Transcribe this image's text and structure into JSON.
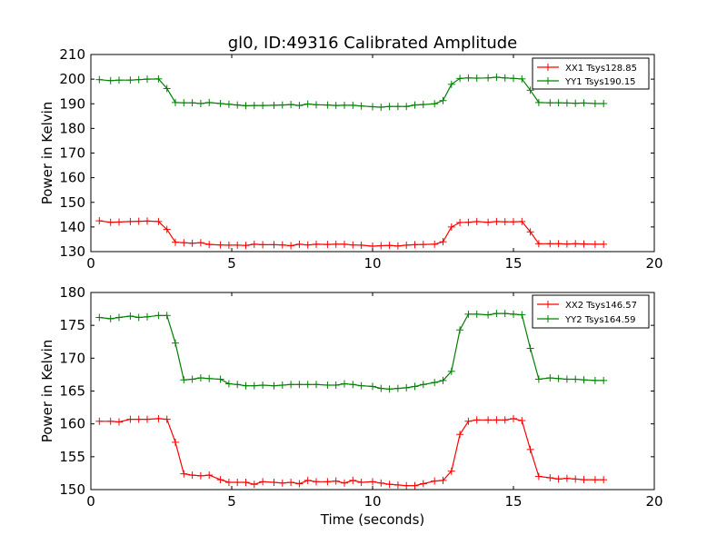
{
  "chart_data": [
    {
      "type": "line",
      "title": "gl0, ID:49316 Calibrated Amplitude",
      "xlabel": "",
      "ylabel": "Power in Kelvin",
      "xlim": [
        0,
        20
      ],
      "ylim": [
        130,
        210
      ],
      "xticks": [
        0,
        5,
        10,
        15,
        20
      ],
      "yticks": [
        130,
        140,
        150,
        160,
        170,
        180,
        190,
        200,
        210
      ],
      "grid": false,
      "legend": "top-right",
      "x": [
        0.3,
        0.7,
        1.0,
        1.4,
        1.7,
        2.0,
        2.4,
        2.7,
        3.0,
        3.3,
        3.6,
        3.9,
        4.2,
        4.6,
        4.9,
        5.2,
        5.5,
        5.8,
        6.1,
        6.5,
        6.8,
        7.1,
        7.4,
        7.7,
        8.0,
        8.4,
        8.7,
        9.0,
        9.3,
        9.6,
        10.0,
        10.3,
        10.6,
        10.9,
        11.2,
        11.5,
        11.8,
        12.2,
        12.5,
        12.8,
        13.1,
        13.4,
        13.7,
        14.1,
        14.4,
        14.7,
        15.0,
        15.3,
        15.6,
        15.9,
        16.3,
        16.6,
        16.9,
        17.2,
        17.5,
        17.9,
        18.2
      ],
      "series": [
        {
          "name": "XX1 Tsys128.85",
          "color": "#ff0000",
          "values": [
            142.5,
            141.9,
            142.0,
            142.2,
            142.3,
            142.4,
            142.2,
            139.0,
            133.8,
            133.6,
            133.4,
            133.6,
            132.9,
            132.7,
            132.6,
            132.6,
            132.5,
            133.0,
            132.8,
            132.8,
            132.7,
            132.4,
            133.0,
            132.7,
            133.0,
            132.9,
            133.0,
            133.0,
            132.7,
            132.6,
            132.2,
            132.4,
            132.5,
            132.3,
            132.6,
            132.8,
            132.9,
            133.0,
            134.0,
            140.0,
            141.8,
            141.9,
            142.2,
            141.9,
            142.2,
            142.1,
            142.1,
            142.2,
            138.0,
            133.2,
            133.2,
            133.2,
            133.1,
            133.2,
            133.1,
            133.0,
            133.0
          ]
        },
        {
          "name": "YY1 Tsys190.15",
          "color": "#008000",
          "values": [
            199.8,
            199.4,
            199.6,
            199.6,
            199.8,
            200.0,
            200.1,
            196.2,
            190.5,
            190.4,
            190.4,
            190.1,
            190.5,
            190.1,
            189.8,
            189.5,
            189.2,
            189.3,
            189.3,
            189.4,
            189.5,
            189.7,
            189.3,
            189.9,
            189.6,
            189.5,
            189.3,
            189.4,
            189.4,
            189.1,
            188.8,
            188.6,
            188.9,
            188.9,
            188.9,
            189.5,
            189.7,
            190.0,
            191.3,
            197.9,
            200.3,
            200.5,
            200.4,
            200.5,
            200.8,
            200.5,
            200.3,
            200.1,
            195.5,
            190.5,
            190.4,
            190.4,
            190.3,
            190.2,
            190.3,
            190.1,
            190.1
          ]
        }
      ]
    },
    {
      "type": "line",
      "title": "",
      "xlabel": "Time (seconds)",
      "ylabel": "Power in Kelvin",
      "xlim": [
        0,
        20
      ],
      "ylim": [
        150,
        180
      ],
      "xticks": [
        0,
        5,
        10,
        15,
        20
      ],
      "yticks": [
        150,
        155,
        160,
        165,
        170,
        175,
        180
      ],
      "grid": false,
      "legend": "top-right",
      "x": [
        0.3,
        0.7,
        1.0,
        1.4,
        1.7,
        2.0,
        2.4,
        2.7,
        3.0,
        3.3,
        3.6,
        3.9,
        4.2,
        4.6,
        4.9,
        5.2,
        5.5,
        5.8,
        6.1,
        6.5,
        6.8,
        7.1,
        7.4,
        7.7,
        8.0,
        8.4,
        8.7,
        9.0,
        9.3,
        9.6,
        10.0,
        10.3,
        10.6,
        10.9,
        11.2,
        11.5,
        11.8,
        12.2,
        12.5,
        12.8,
        13.1,
        13.4,
        13.7,
        14.1,
        14.4,
        14.7,
        15.0,
        15.3,
        15.6,
        15.9,
        16.3,
        16.6,
        16.9,
        17.2,
        17.5,
        17.9,
        18.2
      ],
      "series": [
        {
          "name": "XX2 Tsys146.57",
          "color": "#ff0000",
          "values": [
            160.4,
            160.4,
            160.3,
            160.7,
            160.7,
            160.7,
            160.8,
            160.7,
            157.2,
            152.4,
            152.2,
            152.1,
            152.2,
            151.5,
            151.1,
            151.1,
            151.1,
            150.8,
            151.2,
            151.1,
            151.0,
            151.1,
            150.9,
            151.4,
            151.2,
            151.2,
            151.3,
            151.0,
            151.4,
            151.1,
            151.2,
            151.0,
            150.8,
            150.7,
            150.6,
            150.6,
            150.9,
            151.3,
            151.4,
            152.8,
            158.4,
            160.4,
            160.6,
            160.6,
            160.6,
            160.6,
            160.8,
            160.5,
            156.1,
            152.0,
            151.8,
            151.6,
            151.7,
            151.6,
            151.5,
            151.5,
            151.5
          ]
        },
        {
          "name": "YY2 Tsys164.59",
          "color": "#008000",
          "values": [
            176.2,
            176.0,
            176.2,
            176.4,
            176.2,
            176.3,
            176.5,
            176.5,
            172.3,
            166.7,
            166.8,
            167.0,
            166.9,
            166.8,
            166.1,
            166.0,
            165.8,
            165.8,
            165.9,
            165.8,
            165.9,
            166.0,
            166.0,
            166.0,
            166.0,
            165.9,
            165.9,
            166.1,
            166.0,
            165.8,
            165.7,
            165.4,
            165.3,
            165.4,
            165.5,
            165.7,
            166.0,
            166.3,
            166.6,
            168.0,
            174.3,
            176.7,
            176.7,
            176.6,
            176.8,
            176.8,
            176.7,
            176.6,
            171.5,
            166.8,
            167.0,
            166.9,
            166.8,
            166.8,
            166.7,
            166.6,
            166.6
          ]
        }
      ]
    }
  ]
}
